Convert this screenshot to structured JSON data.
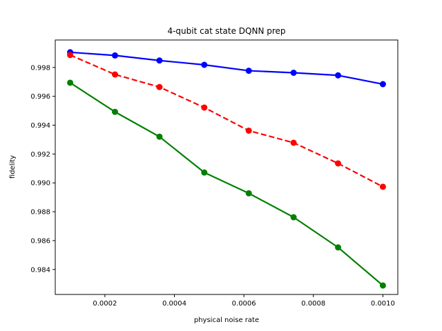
{
  "chart_data": {
    "type": "line",
    "title": "4-qubit cat state DQNN prep",
    "xlabel": "physical noise rate",
    "ylabel": "fidelity",
    "xlim": [
      5.71e-05,
      0.0010429
    ],
    "ylim": [
      0.98227,
      0.9999
    ],
    "xticks": [
      0.0002,
      0.0004,
      0.0006,
      0.0008,
      0.001
    ],
    "xtick_labels": [
      "0.0002",
      "0.0004",
      "0.0006",
      "0.0008",
      "0.0010"
    ],
    "yticks": [
      0.984,
      0.986,
      0.988,
      0.99,
      0.992,
      0.994,
      0.996,
      0.998
    ],
    "ytick_labels": [
      "0.984",
      "0.986",
      "0.988",
      "0.990",
      "0.992",
      "0.994",
      "0.996",
      "0.998"
    ],
    "grid": false,
    "x": [
      0.0001,
      0.000229,
      0.000357,
      0.000486,
      0.000614,
      0.000743,
      0.000871,
      0.001
    ],
    "series": [
      {
        "color": "#0000ff",
        "linestyle": "solid",
        "values": [
          0.99905,
          0.99883,
          0.99848,
          0.99818,
          0.99777,
          0.99763,
          0.99745,
          0.99684
        ]
      },
      {
        "color": "#ff0000",
        "linestyle": "dashed",
        "values": [
          0.99886,
          0.99751,
          0.99664,
          0.99522,
          0.99362,
          0.99278,
          0.99135,
          0.98973
        ]
      },
      {
        "color": "#008000",
        "linestyle": "solid",
        "values": [
          0.99694,
          0.99492,
          0.9932,
          0.99072,
          0.98928,
          0.98762,
          0.98553,
          0.98289
        ]
      }
    ]
  }
}
